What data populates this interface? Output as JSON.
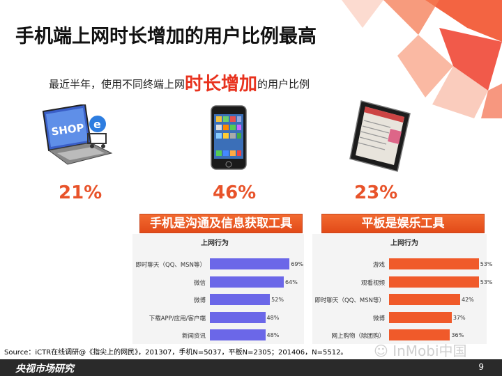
{
  "title": "手机端上网时长增加的用户比例最高",
  "subtitle": {
    "before": "最近半年，使用不同终端上网",
    "highlight": "时长增加",
    "after": "的用户比例"
  },
  "devices": [
    {
      "icon": "laptop-shop-icon",
      "percent": "21%"
    },
    {
      "icon": "smartphone-icon",
      "percent": "46%"
    },
    {
      "icon": "tablet-icon",
      "percent": "23%"
    }
  ],
  "colors": {
    "accent": "#e8532a",
    "phone_bar": "#6b67e8",
    "tablet_bar": "#f05a2a"
  },
  "chart_data": [
    {
      "type": "bar",
      "banner": "手机是沟通及信息获取工具",
      "panel_title": "上网行为",
      "categories": [
        "即时聊天（QQ、MSN等）",
        "微信",
        "微博",
        "下载APP/应用/客户端",
        "新闻资讯"
      ],
      "values": [
        69,
        64,
        52,
        48,
        48
      ],
      "value_labels": [
        "69%",
        "64%",
        "52%",
        "48%",
        "48%"
      ]
    },
    {
      "type": "bar",
      "banner": "平板是娱乐工具",
      "panel_title": "上网行为",
      "categories": [
        "游戏",
        "观看视频",
        "即时聊天（QQ、MSN等）",
        "微博",
        "网上购物（除团购）"
      ],
      "values": [
        53,
        53,
        42,
        37,
        36
      ],
      "value_labels": [
        "53%",
        "53%",
        "42%",
        "37%",
        "36%"
      ]
    }
  ],
  "source": "Source：iCTR在线调研@《指尖上的网民》，201307，手机N=5037，平板N=2305；201406，N=5512。",
  "watermark": "InMobi中国",
  "footer_brand": "央视市场研究",
  "page_number": "9"
}
